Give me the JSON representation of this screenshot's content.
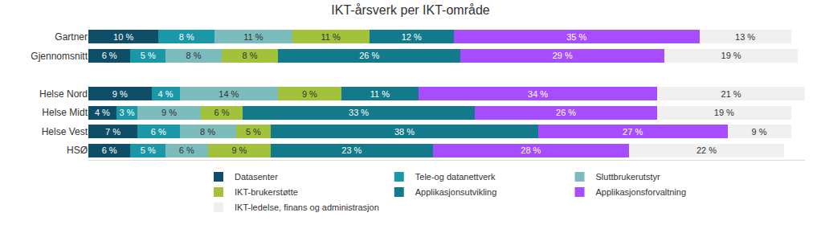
{
  "chart_data": {
    "type": "bar",
    "title": "IKT-årsverk per IKT-område",
    "orientation": "horizontal",
    "stacked": true,
    "data_labels": true,
    "tick_labels": "y",
    "legend": "bottom",
    "grid": false,
    "xlim": [
      0,
      102
    ],
    "categories": [
      "Gartner",
      "Gjennomsnitt",
      null,
      "Helse Nord",
      "Helse Midt",
      "Helse Vest",
      "HSØ"
    ],
    "series": [
      {
        "name": "Datasenter",
        "color": "#0e4e66",
        "values": [
          10,
          6,
          null,
          9,
          4,
          7,
          6
        ],
        "value_labels": [
          "10 %",
          "6 %",
          null,
          "9 %",
          "4 %",
          "7 %",
          "6 %"
        ]
      },
      {
        "name": "Tele-og datanettverk",
        "color": "#1a98a8",
        "values": [
          8,
          5,
          null,
          4,
          3,
          6,
          5
        ],
        "value_labels": [
          "8 %",
          "5 %",
          null,
          "4 %",
          "3 %",
          "6 %",
          "5 %"
        ]
      },
      {
        "name": "Sluttbrukerutstyr",
        "color": "#7dbcbc",
        "values": [
          11,
          8,
          null,
          14,
          9,
          8,
          6
        ],
        "value_labels": [
          "11 %",
          "8 %",
          null,
          "14 %",
          "9 %",
          "8 %",
          "6 %"
        ]
      },
      {
        "name": "IKT-brukerstøtte",
        "color": "#a2c23c",
        "values": [
          11,
          8,
          null,
          9,
          6,
          5,
          9
        ],
        "value_labels": [
          "11 %",
          "8 %",
          null,
          "9 %",
          "6 %",
          "5 %",
          "9 %"
        ]
      },
      {
        "name": "Applikasjonsutvikling",
        "color": "#137a8c",
        "values": [
          12,
          26,
          null,
          11,
          33,
          38,
          23
        ],
        "value_labels": [
          "12 %",
          "26 %",
          null,
          "11 %",
          "33 %",
          "38 %",
          "23 %"
        ]
      },
      {
        "name": "Applikasjonsforvaltning",
        "color": "#a64dff",
        "values": [
          35,
          29,
          null,
          34,
          26,
          27,
          28
        ],
        "value_labels": [
          "35 %",
          "29 %",
          null,
          "34 %",
          "26 %",
          "27 %",
          "28 %"
        ]
      },
      {
        "name": "IKT-ledelse, finans og administrasjon",
        "color": "#f0f0f0",
        "values": [
          13,
          19,
          null,
          21,
          19,
          9,
          22
        ],
        "value_labels": [
          "13 %",
          "19 %",
          null,
          "21 %",
          "19 %",
          "9 %",
          "22 %"
        ]
      }
    ]
  }
}
